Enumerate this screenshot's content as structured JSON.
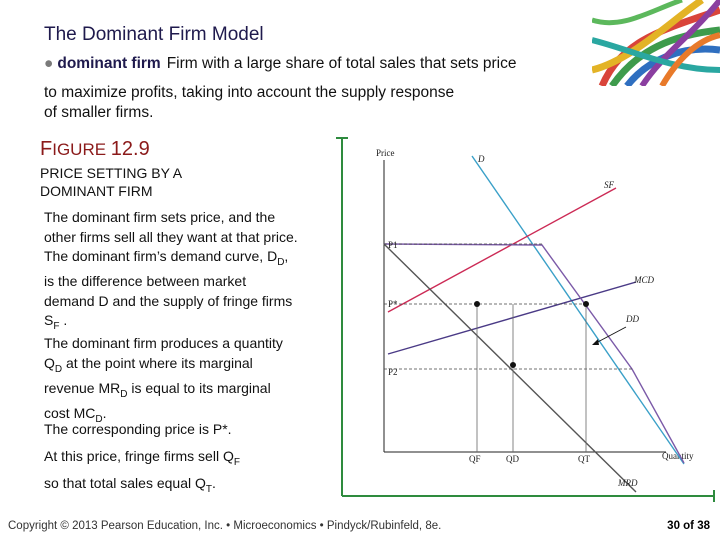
{
  "slide": {
    "title": "The Dominant Firm Model",
    "definition_term": "dominant firm",
    "definition_line1": "Firm with a large share of total sales that sets price",
    "definition_line2": "to maximize profits, taking into account the supply response",
    "definition_line3": "of smaller firms.",
    "figure_label_prefix": "F",
    "figure_label_rest": "IGURE",
    "figure_number": "12.9",
    "figure_title_line1": "PRICE SETTING BY A",
    "figure_title_line2": "DOMINANT FIRM",
    "para1": {
      "l1": "The dominant firm sets price, and the",
      "l2": "other firms sell all they want at that price.",
      "l3a": "The dominant firm’s demand curve, D",
      "l3sub": "D",
      "l3b": ",",
      "l4": "is the difference between market",
      "l5": "demand D and the supply of fringe firms",
      "l6a": "S",
      "l6sub": "F",
      "l6b": " ."
    },
    "para2": {
      "l1": "The dominant firm produces a quantity",
      "l2a": "Q",
      "l2sub": "D",
      "l2b": " at the point where its marginal",
      "l3a": "revenue MR",
      "l3sub": "D",
      "l3b": " is equal to its marginal",
      "l4a": "cost MC",
      "l4sub": "D",
      "l4b": "."
    },
    "para3": "The corresponding price is P*.",
    "para4a": "At this price, fringe firms sell Q",
    "para4sub": "F",
    "para5a": "so that total sales equal Q",
    "para5sub": "T",
    "para5b": ".",
    "footer": "Copyright © 2013 Pearson Education, Inc. • Microeconomics • Pindyck/Rubinfeld, 8e.",
    "page_number": "30 of 38"
  },
  "chart_data": {
    "type": "line",
    "title": "",
    "ylabel": "Price",
    "xlabel": "Quantity",
    "y_ticks": [
      "P1",
      "P*",
      "P2"
    ],
    "x_ticks": [
      "QF",
      "QD",
      "QT"
    ],
    "series": [
      {
        "name": "D",
        "color": "#3aa0c8"
      },
      {
        "name": "SF",
        "color": "#cc2a55"
      },
      {
        "name": "MCD",
        "color": "#4a3a86"
      },
      {
        "name": "DD",
        "color": "#7b5aa8"
      },
      {
        "name": "MRD",
        "color": "#555555"
      }
    ],
    "grid": false
  },
  "colors": {
    "title": "#1f1a4d",
    "figure_label": "#8b1a1a",
    "axis": "#2e8b3e"
  }
}
